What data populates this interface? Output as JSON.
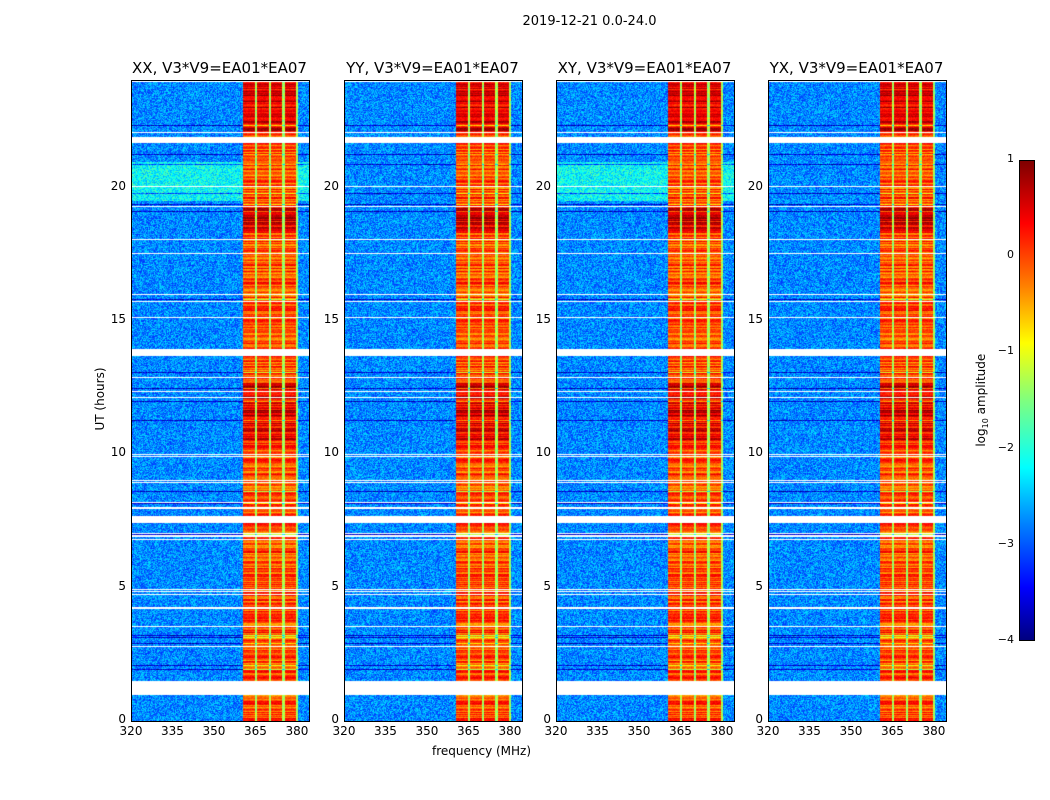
{
  "chart_data": {
    "type": "heatmap",
    "title": "2019-12-21 0.0-24.0",
    "xlabel": "frequency (MHz)",
    "ylabel": "UT (hours)",
    "xlim": [
      320,
      384
    ],
    "ylim": [
      0,
      24
    ],
    "xticks": [
      "320",
      "335",
      "350",
      "365",
      "380"
    ],
    "xtick_values": [
      320,
      335,
      350,
      365,
      380
    ],
    "yticks": [
      "0",
      "5",
      "10",
      "15",
      "20"
    ],
    "ytick_values": [
      0,
      5,
      10,
      15,
      20
    ],
    "panels": [
      {
        "title": "XX, V3*V9=EA01*EA07"
      },
      {
        "title": "YY, V3*V9=EA01*EA07"
      },
      {
        "title": "XY, V3*V9=EA01*EA07"
      },
      {
        "title": "YX, V3*V9=EA01*EA07"
      }
    ],
    "rfi_band_mhz": [
      360,
      380
    ],
    "background_log_amplitude": -2.7,
    "band_log_amplitude_range": [
      -1.2,
      0.9
    ],
    "flagged_ut_ranges": [
      [
        1.0,
        1.5
      ],
      [
        7.5,
        7.7
      ],
      [
        13.7,
        13.95
      ],
      [
        21.7,
        21.9
      ]
    ],
    "colorbar": {
      "label": "log10 amplitude",
      "label_main": "log",
      "label_sub": "10",
      "label_rest": " amplitude",
      "ticks": [
        "1",
        "0",
        "−1",
        "−2",
        "−3",
        "−4"
      ],
      "tick_values": [
        1,
        0,
        -1,
        -2,
        -3,
        -4
      ],
      "range": [
        -4,
        1
      ],
      "colormap": "jet"
    }
  }
}
